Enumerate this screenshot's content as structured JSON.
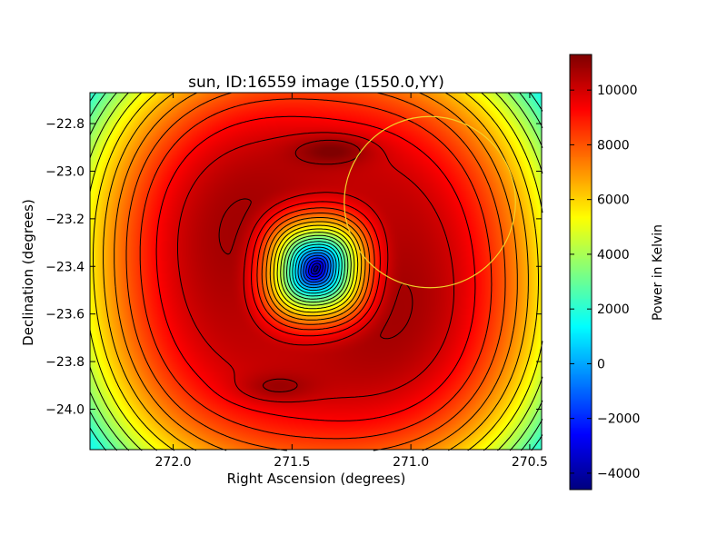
{
  "chart_data": {
    "type": "heatmap",
    "title": "sun, ID:16559 image (1550.0,YY)",
    "xlabel": "Right Ascension (degrees)",
    "ylabel": "Declination (degrees)",
    "xlim": [
      272.35,
      270.45
    ],
    "ylim": [
      -24.17,
      -22.67
    ],
    "x_inverted": true,
    "x_ticks": [
      272.0,
      271.5,
      271.0,
      270.5
    ],
    "x_tick_labels": [
      "272.0",
      "271.5",
      "271.0",
      "270.5"
    ],
    "y_ticks": [
      -22.8,
      -23.0,
      -23.2,
      -23.4,
      -23.6,
      -23.8,
      -24.0
    ],
    "y_tick_labels": [
      "−22.8",
      "−23.0",
      "−23.2",
      "−23.4",
      "−23.6",
      "−23.8",
      "−24.0"
    ],
    "grid": false,
    "colormap": "jet",
    "colorbar": {
      "label": "Power in Kelvin",
      "min": -4600,
      "max": 11300,
      "ticks": [
        -4000,
        -2000,
        0,
        2000,
        4000,
        6000,
        8000,
        10000
      ],
      "tick_labels": [
        "−4000",
        "−2000",
        "0",
        "2000",
        "4000",
        "6000",
        "8000",
        "10000"
      ]
    },
    "field": {
      "center_ra": 271.4,
      "center_dec": -23.41,
      "min_value": -4600,
      "ring_peak_value": 10500,
      "ring_radius_deg": 0.37,
      "corner_value": 2000,
      "hot_spots": [
        {
          "ra": 271.33,
          "dec": -22.91,
          "value": 11300
        },
        {
          "ra": 271.57,
          "dec": -23.91,
          "value": 10900
        }
      ]
    },
    "contours": {
      "line_color": "#000000",
      "negative_style": "dashed",
      "positive_style": "solid"
    },
    "overlay_circle": {
      "center_ra": 270.92,
      "center_dec": -23.13,
      "radius_deg": 0.36,
      "color": "#f2d22b"
    }
  }
}
